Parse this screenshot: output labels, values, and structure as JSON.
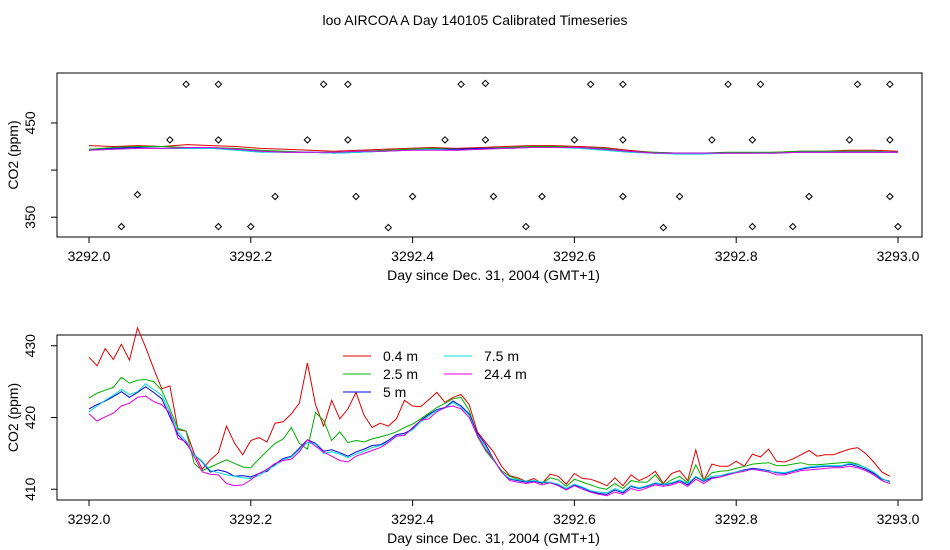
{
  "title": "loo AIRCOA A  Day 140105  Calibrated Timeseries",
  "colors": {
    "s04": "#e00000",
    "s25": "#00b000",
    "s5": "#0000e0",
    "s75": "#00d8d8",
    "s244": "#e000e0",
    "points": "#000000"
  },
  "chart_data": [
    {
      "type": "line",
      "xlabel": "Day since Dec. 31, 2004 (GMT+1)",
      "ylabel": "CO2 (ppm)",
      "xlim": [
        3292.0,
        3293.0
      ],
      "ylim": [
        329,
        503
      ],
      "xticks": [
        "3292.0",
        "3292.2",
        "3292.4",
        "3292.6",
        "3292.8",
        "3293.0"
      ],
      "yticks": [
        "350",
        "450"
      ],
      "points": {
        "x": [
          3292.04,
          3292.06,
          3292.12,
          3292.16,
          3292.2,
          3292.23,
          3292.29,
          3292.32,
          3292.33,
          3292.37,
          3292.4,
          3292.46,
          3292.49,
          3292.5,
          3292.54,
          3292.56,
          3292.62,
          3292.66,
          3292.66,
          3292.71,
          3292.73,
          3292.79,
          3292.82,
          3292.83,
          3292.87,
          3292.89,
          3292.95,
          3292.99,
          3292.99,
          3293.0
        ],
        "y": [
          340,
          374,
          491,
          491,
          340,
          372,
          491,
          491,
          372,
          339,
          372,
          491,
          492,
          372,
          340,
          372,
          491,
          491,
          372,
          339,
          372,
          491,
          340,
          491,
          340,
          372,
          491,
          491,
          372,
          340
        ]
      },
      "points_b": {
        "x": [
          3292.1,
          3292.16,
          3292.16,
          3292.27,
          3292.32,
          3292.44,
          3292.49,
          3292.6,
          3292.66,
          3292.77,
          3292.82,
          3292.94,
          3292.99
        ],
        "y": [
          432,
          432,
          340,
          432,
          432,
          432,
          432,
          432,
          432,
          432,
          432,
          432,
          432
        ]
      },
      "series": [
        {
          "color_key": "s04",
          "values": [
            426,
            425,
            426,
            425,
            427,
            426,
            425,
            423,
            422,
            421,
            420,
            421,
            422,
            423,
            424,
            423,
            424,
            425,
            426,
            426,
            425,
            424,
            421,
            419,
            418,
            418,
            418,
            418,
            419,
            420,
            420,
            421,
            421,
            420
          ]
        },
        {
          "color_key": "s25",
          "values": [
            422,
            424,
            425,
            425,
            424,
            424,
            423,
            421,
            420,
            419,
            419,
            420,
            421,
            422,
            423,
            422,
            423,
            424,
            425,
            425,
            424,
            423,
            420,
            419,
            418,
            418,
            419,
            419,
            419,
            420,
            420,
            420,
            420,
            419
          ]
        },
        {
          "color_key": "s5",
          "values": [
            421,
            423,
            424,
            423,
            423,
            423,
            422,
            420,
            419,
            419,
            418,
            419,
            420,
            421,
            422,
            422,
            423,
            423,
            424,
            424,
            424,
            422,
            420,
            418,
            418,
            418,
            418,
            418,
            418,
            419,
            419,
            419,
            419,
            419
          ]
        },
        {
          "color_key": "s75",
          "values": [
            421,
            422,
            423,
            423,
            423,
            423,
            421,
            419,
            419,
            419,
            418,
            419,
            420,
            421,
            422,
            421,
            422,
            423,
            424,
            424,
            423,
            421,
            419,
            418,
            417,
            417,
            418,
            418,
            418,
            419,
            419,
            419,
            419,
            419
          ]
        },
        {
          "color_key": "s244",
          "values": [
            421,
            422,
            423,
            423,
            424,
            424,
            422,
            420,
            419,
            419,
            419,
            420,
            420,
            421,
            421,
            421,
            422,
            423,
            424,
            424,
            424,
            422,
            420,
            418,
            418,
            418,
            418,
            418,
            418,
            419,
            419,
            419,
            419,
            419
          ]
        }
      ]
    },
    {
      "type": "line",
      "xlabel": "Day since Dec. 31, 2004 (GMT+1)",
      "ylabel": "CO2 (ppm)",
      "xlim": [
        3292.0,
        3293.0
      ],
      "ylim": [
        408.5,
        431.5
      ],
      "xticks": [
        "3292.0",
        "3292.2",
        "3292.4",
        "3292.6",
        "3292.8",
        "3293.0"
      ],
      "yticks": [
        "410",
        "420",
        "430"
      ],
      "x": [
        3292.0,
        3292.01,
        3292.02,
        3292.03,
        3292.04,
        3292.05,
        3292.06,
        3292.07,
        3292.08,
        3292.09,
        3292.1,
        3292.11,
        3292.12,
        3292.13,
        3292.14,
        3292.15,
        3292.16,
        3292.17,
        3292.18,
        3292.19,
        3292.2,
        3292.21,
        3292.22,
        3292.23,
        3292.24,
        3292.25,
        3292.26,
        3292.27,
        3292.28,
        3292.29,
        3292.3,
        3292.31,
        3292.32,
        3292.33,
        3292.34,
        3292.35,
        3292.36,
        3292.37,
        3292.38,
        3292.39,
        3292.4,
        3292.41,
        3292.42,
        3292.43,
        3292.44,
        3292.45,
        3292.46,
        3292.47,
        3292.48,
        3292.49,
        3292.5,
        3292.51,
        3292.52,
        3292.53,
        3292.54,
        3292.55,
        3292.56,
        3292.57,
        3292.58,
        3292.59,
        3292.6,
        3292.61,
        3292.62,
        3292.63,
        3292.64,
        3292.65,
        3292.66,
        3292.67,
        3292.68,
        3292.69,
        3292.7,
        3292.71,
        3292.72,
        3292.73,
        3292.74,
        3292.75,
        3292.76,
        3292.77,
        3292.78,
        3292.79,
        3292.8,
        3292.81,
        3292.82,
        3292.83,
        3292.84,
        3292.85,
        3292.86,
        3292.87,
        3292.88,
        3292.89,
        3292.9,
        3292.91,
        3292.92,
        3292.93,
        3292.94,
        3292.95,
        3292.96,
        3292.97,
        3292.98,
        3292.99
      ],
      "legend": {
        "position": "top-center",
        "ncol": 2
      },
      "series": [
        {
          "name": "0.4 m",
          "color_key": "s04",
          "values": [
            428.4,
            427.2,
            429.6,
            428.1,
            430.2,
            428.0,
            432.5,
            429.8,
            426.8,
            424.0,
            424.4,
            418.3,
            418.1,
            415.0,
            412.8,
            414.1,
            415.1,
            418.8,
            416.4,
            414.8,
            416.8,
            417.2,
            416.6,
            419.2,
            419.4,
            420.5,
            422.0,
            427.6,
            421.8,
            418.8,
            422.4,
            419.8,
            421.2,
            423.5,
            420.3,
            418.6,
            419.2,
            418.8,
            419.8,
            422.4,
            421.6,
            421.5,
            422.5,
            423.5,
            422.1,
            422.8,
            423.2,
            421.8,
            418.0,
            416.6,
            415.2,
            413.2,
            411.9,
            411.6,
            411.1,
            411.5,
            410.8,
            412.1,
            411.8,
            410.7,
            412.2,
            411.5,
            411.4,
            411.0,
            410.5,
            411.6,
            410.5,
            412.0,
            411.2,
            411.7,
            412.5,
            410.8,
            412.2,
            412.6,
            411.2,
            415.5,
            411.2,
            413.5,
            413.2,
            413.2,
            413.9,
            413.2,
            414.9,
            414.5,
            415.6,
            413.9,
            413.8,
            414.2,
            414.8,
            415.4,
            414.6,
            414.8,
            414.8,
            415.2,
            415.6,
            415.8,
            415.0,
            413.8,
            412.4,
            411.8
          ]
        },
        {
          "name": "2.5 m",
          "color_key": "s25",
          "values": [
            422.7,
            423.4,
            423.8,
            424.2,
            425.6,
            424.8,
            425.2,
            425.3,
            425.0,
            423.8,
            421.2,
            418.5,
            418.1,
            413.6,
            412.6,
            413.1,
            413.6,
            414.1,
            413.6,
            413.1,
            413.0,
            414.2,
            415.3,
            416.4,
            417.0,
            418.6,
            416.4,
            415.6,
            420.7,
            419.6,
            416.8,
            418.0,
            416.5,
            416.8,
            416.6,
            417.0,
            417.3,
            417.6,
            418.0,
            418.6,
            419.1,
            419.8,
            420.6,
            421.4,
            422.0,
            422.6,
            422.8,
            421.0,
            417.4,
            415.4,
            414.0,
            412.6,
            411.8,
            411.4,
            411.0,
            411.2,
            410.8,
            411.6,
            411.3,
            410.4,
            411.4,
            411.0,
            410.6,
            410.2,
            410.0,
            410.8,
            410.1,
            411.2,
            411.0,
            411.0,
            412.0,
            410.6,
            411.3,
            411.8,
            410.9,
            413.4,
            411.2,
            412.3,
            412.5,
            412.6,
            412.9,
            413.2,
            413.5,
            413.6,
            413.7,
            413.3,
            413.3,
            413.5,
            413.7,
            413.4,
            413.4,
            413.5,
            413.6,
            413.7,
            413.8,
            413.5,
            413.0,
            412.3,
            411.2,
            410.8
          ]
        },
        {
          "name": "5 m",
          "color_key": "s5",
          "values": [
            421.2,
            421.8,
            422.3,
            422.9,
            423.6,
            422.8,
            423.5,
            424.3,
            423.5,
            422.6,
            420.1,
            417.6,
            416.4,
            414.8,
            413.8,
            412.4,
            412.7,
            412.4,
            411.8,
            411.9,
            411.7,
            412.2,
            412.5,
            413.5,
            414.3,
            414.6,
            415.7,
            416.9,
            416.4,
            415.3,
            415.5,
            415.1,
            414.6,
            415.2,
            415.6,
            416.1,
            416.2,
            416.8,
            417.6,
            417.8,
            418.4,
            419.6,
            420.4,
            421.1,
            421.4,
            422.3,
            421.6,
            420.5,
            417.8,
            416.3,
            414.2,
            412.4,
            411.4,
            411.2,
            411.0,
            411.1,
            410.9,
            410.9,
            410.6,
            410.0,
            410.6,
            410.2,
            409.7,
            409.4,
            409.3,
            409.9,
            409.5,
            410.4,
            410.1,
            410.4,
            410.8,
            410.6,
            410.8,
            411.2,
            410.6,
            411.7,
            411.1,
            411.6,
            411.7,
            412.1,
            412.4,
            412.7,
            412.9,
            412.8,
            412.6,
            412.3,
            412.2,
            412.5,
            412.8,
            413.0,
            413.1,
            413.2,
            413.2,
            413.2,
            413.5,
            413.2,
            412.8,
            412.2,
            411.4,
            411.1
          ]
        },
        {
          "name": "7.5 m",
          "color_key": "s75",
          "values": [
            420.8,
            421.6,
            422.4,
            423.1,
            423.9,
            423.2,
            423.6,
            424.7,
            423.9,
            423.1,
            420.7,
            418.0,
            416.7,
            414.8,
            413.9,
            412.6,
            412.3,
            412.0,
            411.8,
            411.6,
            411.5,
            411.9,
            412.7,
            413.3,
            414.1,
            414.5,
            415.5,
            416.5,
            416.3,
            415.0,
            415.2,
            414.9,
            414.4,
            414.9,
            415.3,
            415.8,
            416.1,
            416.6,
            417.4,
            417.6,
            418.3,
            419.4,
            420.2,
            421.0,
            421.3,
            422.1,
            421.4,
            420.3,
            417.5,
            416.0,
            414.1,
            412.4,
            411.5,
            411.3,
            411.1,
            411.2,
            411.0,
            411.0,
            410.7,
            410.1,
            410.7,
            410.3,
            409.8,
            409.6,
            409.5,
            410.1,
            409.7,
            410.5,
            410.2,
            410.5,
            410.9,
            410.7,
            410.9,
            411.3,
            410.8,
            411.8,
            411.2,
            411.8,
            411.9,
            412.2,
            412.4,
            412.6,
            412.8,
            412.7,
            412.5,
            412.4,
            412.3,
            412.6,
            412.9,
            413.1,
            413.2,
            413.3,
            413.3,
            413.3,
            413.6,
            413.4,
            413.0,
            412.4,
            411.5,
            411.0
          ]
        },
        {
          "name": "24.4 m",
          "color_key": "s244",
          "values": [
            420.5,
            419.5,
            420.1,
            420.6,
            421.6,
            422.0,
            422.8,
            423.0,
            422.2,
            421.8,
            420.6,
            417.1,
            416.6,
            414.5,
            412.4,
            412.1,
            412.0,
            410.8,
            410.5,
            410.6,
            411.3,
            412.2,
            412.8,
            413.6,
            414.0,
            414.2,
            415.2,
            416.9,
            416.0,
            415.2,
            414.6,
            414.0,
            413.8,
            414.6,
            415.0,
            415.4,
            415.8,
            416.5,
            417.4,
            417.5,
            418.6,
            419.6,
            419.8,
            420.8,
            421.4,
            421.6,
            421.2,
            420.0,
            417.5,
            415.6,
            414.2,
            412.4,
            411.2,
            411.0,
            410.8,
            411.0,
            410.6,
            410.9,
            410.5,
            409.9,
            410.5,
            410.0,
            409.6,
            409.3,
            409.1,
            409.6,
            409.3,
            410.1,
            409.8,
            410.2,
            410.6,
            410.4,
            410.6,
            411.0,
            410.4,
            411.4,
            410.8,
            411.5,
            411.7,
            412.0,
            412.3,
            412.5,
            412.8,
            412.6,
            412.4,
            412.0,
            412.0,
            412.3,
            412.6,
            412.7,
            412.8,
            412.9,
            413.0,
            413.0,
            413.2,
            413.0,
            412.6,
            412.0,
            411.2,
            410.8
          ]
        }
      ]
    }
  ]
}
